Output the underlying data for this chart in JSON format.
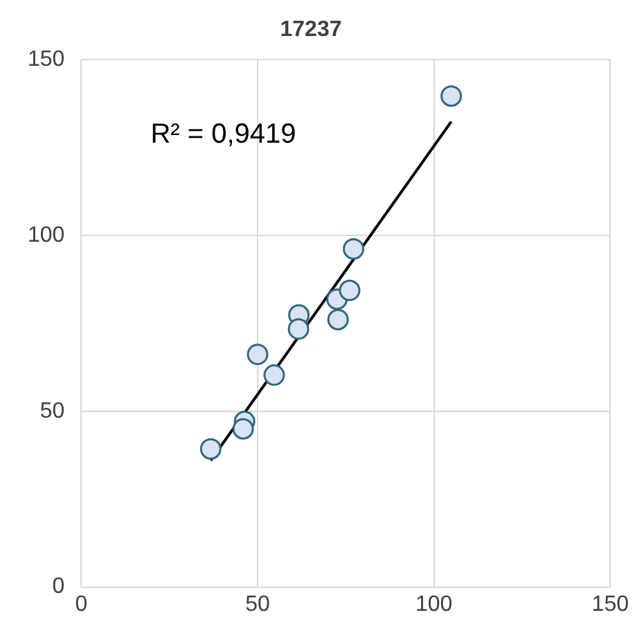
{
  "chart_data": {
    "type": "scatter",
    "title": "17237",
    "xlim": [
      0,
      150
    ],
    "xticks": [
      0,
      50,
      100,
      150
    ],
    "ylim": [
      0,
      150
    ],
    "yticks": [
      0,
      50,
      100,
      150
    ],
    "grid": true,
    "legend": false,
    "annotations": [
      "R² = 0,9419"
    ],
    "series": [
      {
        "marker": "circle",
        "color": "#dae3f3",
        "x": [
          36.7,
          46.3,
          45.9,
          50,
          54.7,
          61.7,
          61.6,
          72.5,
          76.1,
          72.8,
          77.2,
          104.9
        ],
        "values": [
          39.3,
          47.1,
          45,
          66.2,
          60.3,
          77.4,
          73.4,
          81.9,
          84.4,
          76.1,
          96.2,
          139.7
        ]
      },
      {
        "type": "line",
        "marker": "none",
        "color": "#000000",
        "x": [
          36.7,
          104.9
        ],
        "values": [
          36,
          132.4
        ]
      }
    ]
  }
}
